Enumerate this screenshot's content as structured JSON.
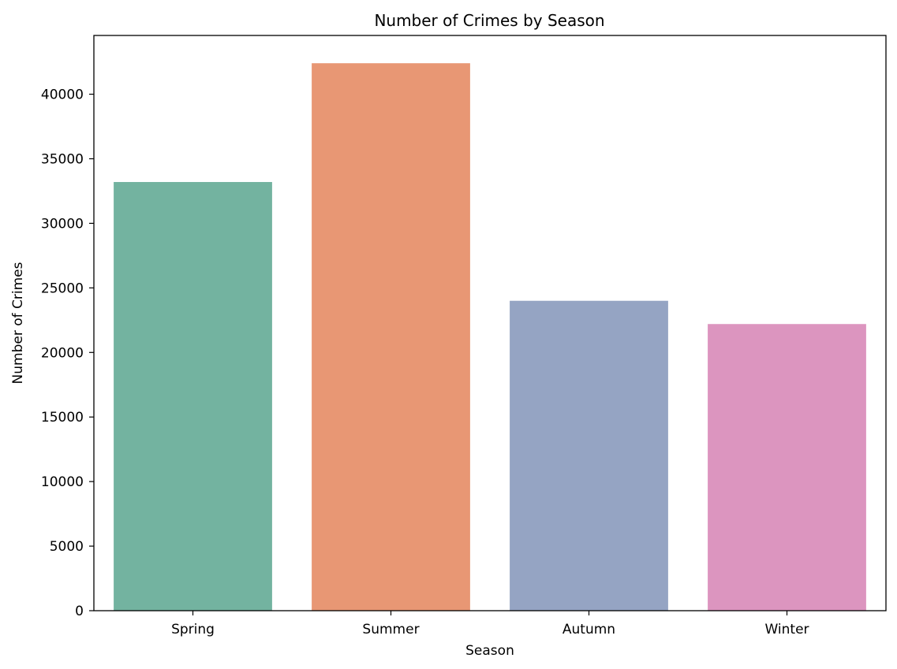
{
  "chart_data": {
    "type": "bar",
    "title": "Number of Crimes by Season",
    "xlabel": "Season",
    "ylabel": "Number of Crimes",
    "categories": [
      "Spring",
      "Summer",
      "Autumn",
      "Winter"
    ],
    "values": [
      33200,
      42400,
      24000,
      22200
    ],
    "colors": [
      "#73b3a0",
      "#e89774",
      "#95a4c3",
      "#dc95bf"
    ],
    "ylim": [
      0,
      44550
    ],
    "yticks": [
      0,
      5000,
      10000,
      15000,
      20000,
      25000,
      30000,
      35000,
      40000
    ],
    "grid": false,
    "legend": "none"
  }
}
